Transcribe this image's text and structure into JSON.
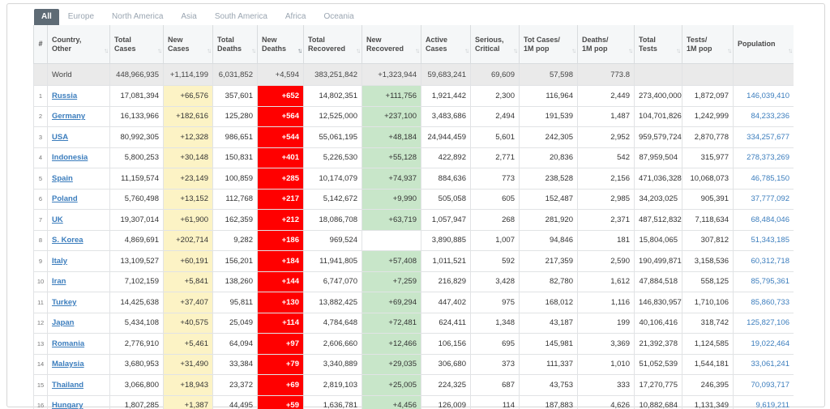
{
  "tabs": [
    "All",
    "Europe",
    "North America",
    "Asia",
    "South America",
    "Africa",
    "Oceania"
  ],
  "active_tab": "All",
  "columns": [
    {
      "label1": "#",
      "label2": ""
    },
    {
      "label1": "Country,",
      "label2": "Other"
    },
    {
      "label1": "Total",
      "label2": "Cases"
    },
    {
      "label1": "New",
      "label2": "Cases"
    },
    {
      "label1": "Total",
      "label2": "Deaths"
    },
    {
      "label1": "New",
      "label2": "Deaths"
    },
    {
      "label1": "Total",
      "label2": "Recovered"
    },
    {
      "label1": "New",
      "label2": "Recovered"
    },
    {
      "label1": "Active",
      "label2": "Cases"
    },
    {
      "label1": "Serious,",
      "label2": "Critical"
    },
    {
      "label1": "Tot Cases/",
      "label2": "1M pop"
    },
    {
      "label1": "Deaths/",
      "label2": "1M pop"
    },
    {
      "label1": "Total",
      "label2": "Tests"
    },
    {
      "label1": "Tests/",
      "label2": "1M pop"
    },
    {
      "label1": "Population",
      "label2": ""
    }
  ],
  "world": {
    "label": "World",
    "total_cases": "448,966,935",
    "new_cases": "+1,114,199",
    "total_deaths": "6,031,852",
    "new_deaths": "+4,594",
    "total_recovered": "383,251,842",
    "new_recovered": "+1,323,944",
    "active": "59,683,241",
    "serious": "69,609",
    "cases_per_m": "57,598",
    "deaths_per_m": "773.8"
  },
  "rows": [
    {
      "n": "1",
      "country": "Russia",
      "total_cases": "17,081,394",
      "new_cases": "+66,576",
      "total_deaths": "357,601",
      "new_deaths": "+652",
      "total_recovered": "14,802,351",
      "new_recovered": "+111,756",
      "active": "1,921,442",
      "serious": "2,300",
      "cases_per_m": "116,964",
      "deaths_per_m": "2,449",
      "tests": "273,400,000",
      "tests_per_m": "1,872,097",
      "population": "146,039,410"
    },
    {
      "n": "2",
      "country": "Germany",
      "total_cases": "16,133,966",
      "new_cases": "+182,616",
      "total_deaths": "125,280",
      "new_deaths": "+564",
      "total_recovered": "12,525,000",
      "new_recovered": "+237,100",
      "active": "3,483,686",
      "serious": "2,494",
      "cases_per_m": "191,539",
      "deaths_per_m": "1,487",
      "tests": "104,701,826",
      "tests_per_m": "1,242,999",
      "population": "84,233,236"
    },
    {
      "n": "3",
      "country": "USA",
      "total_cases": "80,992,305",
      "new_cases": "+12,328",
      "total_deaths": "986,651",
      "new_deaths": "+544",
      "total_recovered": "55,061,195",
      "new_recovered": "+48,184",
      "active": "24,944,459",
      "serious": "5,601",
      "cases_per_m": "242,305",
      "deaths_per_m": "2,952",
      "tests": "959,579,724",
      "tests_per_m": "2,870,778",
      "population": "334,257,677"
    },
    {
      "n": "4",
      "country": "Indonesia",
      "total_cases": "5,800,253",
      "new_cases": "+30,148",
      "total_deaths": "150,831",
      "new_deaths": "+401",
      "total_recovered": "5,226,530",
      "new_recovered": "+55,128",
      "active": "422,892",
      "serious": "2,771",
      "cases_per_m": "20,836",
      "deaths_per_m": "542",
      "tests": "87,959,504",
      "tests_per_m": "315,977",
      "population": "278,373,269"
    },
    {
      "n": "5",
      "country": "Spain",
      "total_cases": "11,159,574",
      "new_cases": "+23,149",
      "total_deaths": "100,859",
      "new_deaths": "+285",
      "total_recovered": "10,174,079",
      "new_recovered": "+74,937",
      "active": "884,636",
      "serious": "773",
      "cases_per_m": "238,528",
      "deaths_per_m": "2,156",
      "tests": "471,036,328",
      "tests_per_m": "10,068,073",
      "population": "46,785,150"
    },
    {
      "n": "6",
      "country": "Poland",
      "total_cases": "5,760,498",
      "new_cases": "+13,152",
      "total_deaths": "112,768",
      "new_deaths": "+217",
      "total_recovered": "5,142,672",
      "new_recovered": "+9,990",
      "active": "505,058",
      "serious": "605",
      "cases_per_m": "152,487",
      "deaths_per_m": "2,985",
      "tests": "34,203,025",
      "tests_per_m": "905,391",
      "population": "37,777,092"
    },
    {
      "n": "7",
      "country": "UK",
      "total_cases": "19,307,014",
      "new_cases": "+61,900",
      "total_deaths": "162,359",
      "new_deaths": "+212",
      "total_recovered": "18,086,708",
      "new_recovered": "+63,719",
      "active": "1,057,947",
      "serious": "268",
      "cases_per_m": "281,920",
      "deaths_per_m": "2,371",
      "tests": "487,512,832",
      "tests_per_m": "7,118,634",
      "population": "68,484,046"
    },
    {
      "n": "8",
      "country": "S. Korea",
      "total_cases": "4,869,691",
      "new_cases": "+202,714",
      "total_deaths": "9,282",
      "new_deaths": "+186",
      "total_recovered": "969,524",
      "new_recovered": "",
      "active": "3,890,885",
      "serious": "1,007",
      "cases_per_m": "94,846",
      "deaths_per_m": "181",
      "tests": "15,804,065",
      "tests_per_m": "307,812",
      "population": "51,343,185"
    },
    {
      "n": "9",
      "country": "Italy",
      "total_cases": "13,109,527",
      "new_cases": "+60,191",
      "total_deaths": "156,201",
      "new_deaths": "+184",
      "total_recovered": "11,941,805",
      "new_recovered": "+57,408",
      "active": "1,011,521",
      "serious": "592",
      "cases_per_m": "217,359",
      "deaths_per_m": "2,590",
      "tests": "190,499,871",
      "tests_per_m": "3,158,536",
      "population": "60,312,718"
    },
    {
      "n": "10",
      "country": "Iran",
      "total_cases": "7,102,159",
      "new_cases": "+5,841",
      "total_deaths": "138,260",
      "new_deaths": "+144",
      "total_recovered": "6,747,070",
      "new_recovered": "+7,259",
      "active": "216,829",
      "serious": "3,428",
      "cases_per_m": "82,780",
      "deaths_per_m": "1,612",
      "tests": "47,884,518",
      "tests_per_m": "558,125",
      "population": "85,795,361"
    },
    {
      "n": "11",
      "country": "Turkey",
      "total_cases": "14,425,638",
      "new_cases": "+37,407",
      "total_deaths": "95,811",
      "new_deaths": "+130",
      "total_recovered": "13,882,425",
      "new_recovered": "+69,294",
      "active": "447,402",
      "serious": "975",
      "cases_per_m": "168,012",
      "deaths_per_m": "1,116",
      "tests": "146,830,957",
      "tests_per_m": "1,710,106",
      "population": "85,860,733"
    },
    {
      "n": "12",
      "country": "Japan",
      "total_cases": "5,434,108",
      "new_cases": "+40,575",
      "total_deaths": "25,049",
      "new_deaths": "+114",
      "total_recovered": "4,784,648",
      "new_recovered": "+72,481",
      "active": "624,411",
      "serious": "1,348",
      "cases_per_m": "43,187",
      "deaths_per_m": "199",
      "tests": "40,106,416",
      "tests_per_m": "318,742",
      "population": "125,827,106"
    },
    {
      "n": "13",
      "country": "Romania",
      "total_cases": "2,776,910",
      "new_cases": "+5,461",
      "total_deaths": "64,094",
      "new_deaths": "+97",
      "total_recovered": "2,606,660",
      "new_recovered": "+12,466",
      "active": "106,156",
      "serious": "695",
      "cases_per_m": "145,981",
      "deaths_per_m": "3,369",
      "tests": "21,392,378",
      "tests_per_m": "1,124,585",
      "population": "19,022,464"
    },
    {
      "n": "14",
      "country": "Malaysia",
      "total_cases": "3,680,953",
      "new_cases": "+31,490",
      "total_deaths": "33,384",
      "new_deaths": "+79",
      "total_recovered": "3,340,889",
      "new_recovered": "+29,035",
      "active": "306,680",
      "serious": "373",
      "cases_per_m": "111,337",
      "deaths_per_m": "1,010",
      "tests": "51,052,539",
      "tests_per_m": "1,544,181",
      "population": "33,061,241"
    },
    {
      "n": "15",
      "country": "Thailand",
      "total_cases": "3,066,800",
      "new_cases": "+18,943",
      "total_deaths": "23,372",
      "new_deaths": "+69",
      "total_recovered": "2,819,103",
      "new_recovered": "+25,005",
      "active": "224,325",
      "serious": "687",
      "cases_per_m": "43,753",
      "deaths_per_m": "333",
      "tests": "17,270,775",
      "tests_per_m": "246,395",
      "population": "70,093,717"
    },
    {
      "n": "16",
      "country": "Hungary",
      "total_cases": "1,807,285",
      "new_cases": "+1,387",
      "total_deaths": "44,495",
      "new_deaths": "+59",
      "total_recovered": "1,636,781",
      "new_recovered": "+4,456",
      "active": "126,009",
      "serious": "114",
      "cases_per_m": "187,883",
      "deaths_per_m": "4,626",
      "tests": "10,882,684",
      "tests_per_m": "1,131,349",
      "population": "9,619,211"
    }
  ],
  "sorted_column": 5,
  "sort_icon": "sort-arrows-icon",
  "colors": {
    "new_cases_bg": "#fcf3c5",
    "new_deaths_bg": "#ff0000",
    "new_recovered_bg": "#c8e6c9",
    "link": "#3b7dbd",
    "tab_active_bg": "#5e6b75"
  }
}
